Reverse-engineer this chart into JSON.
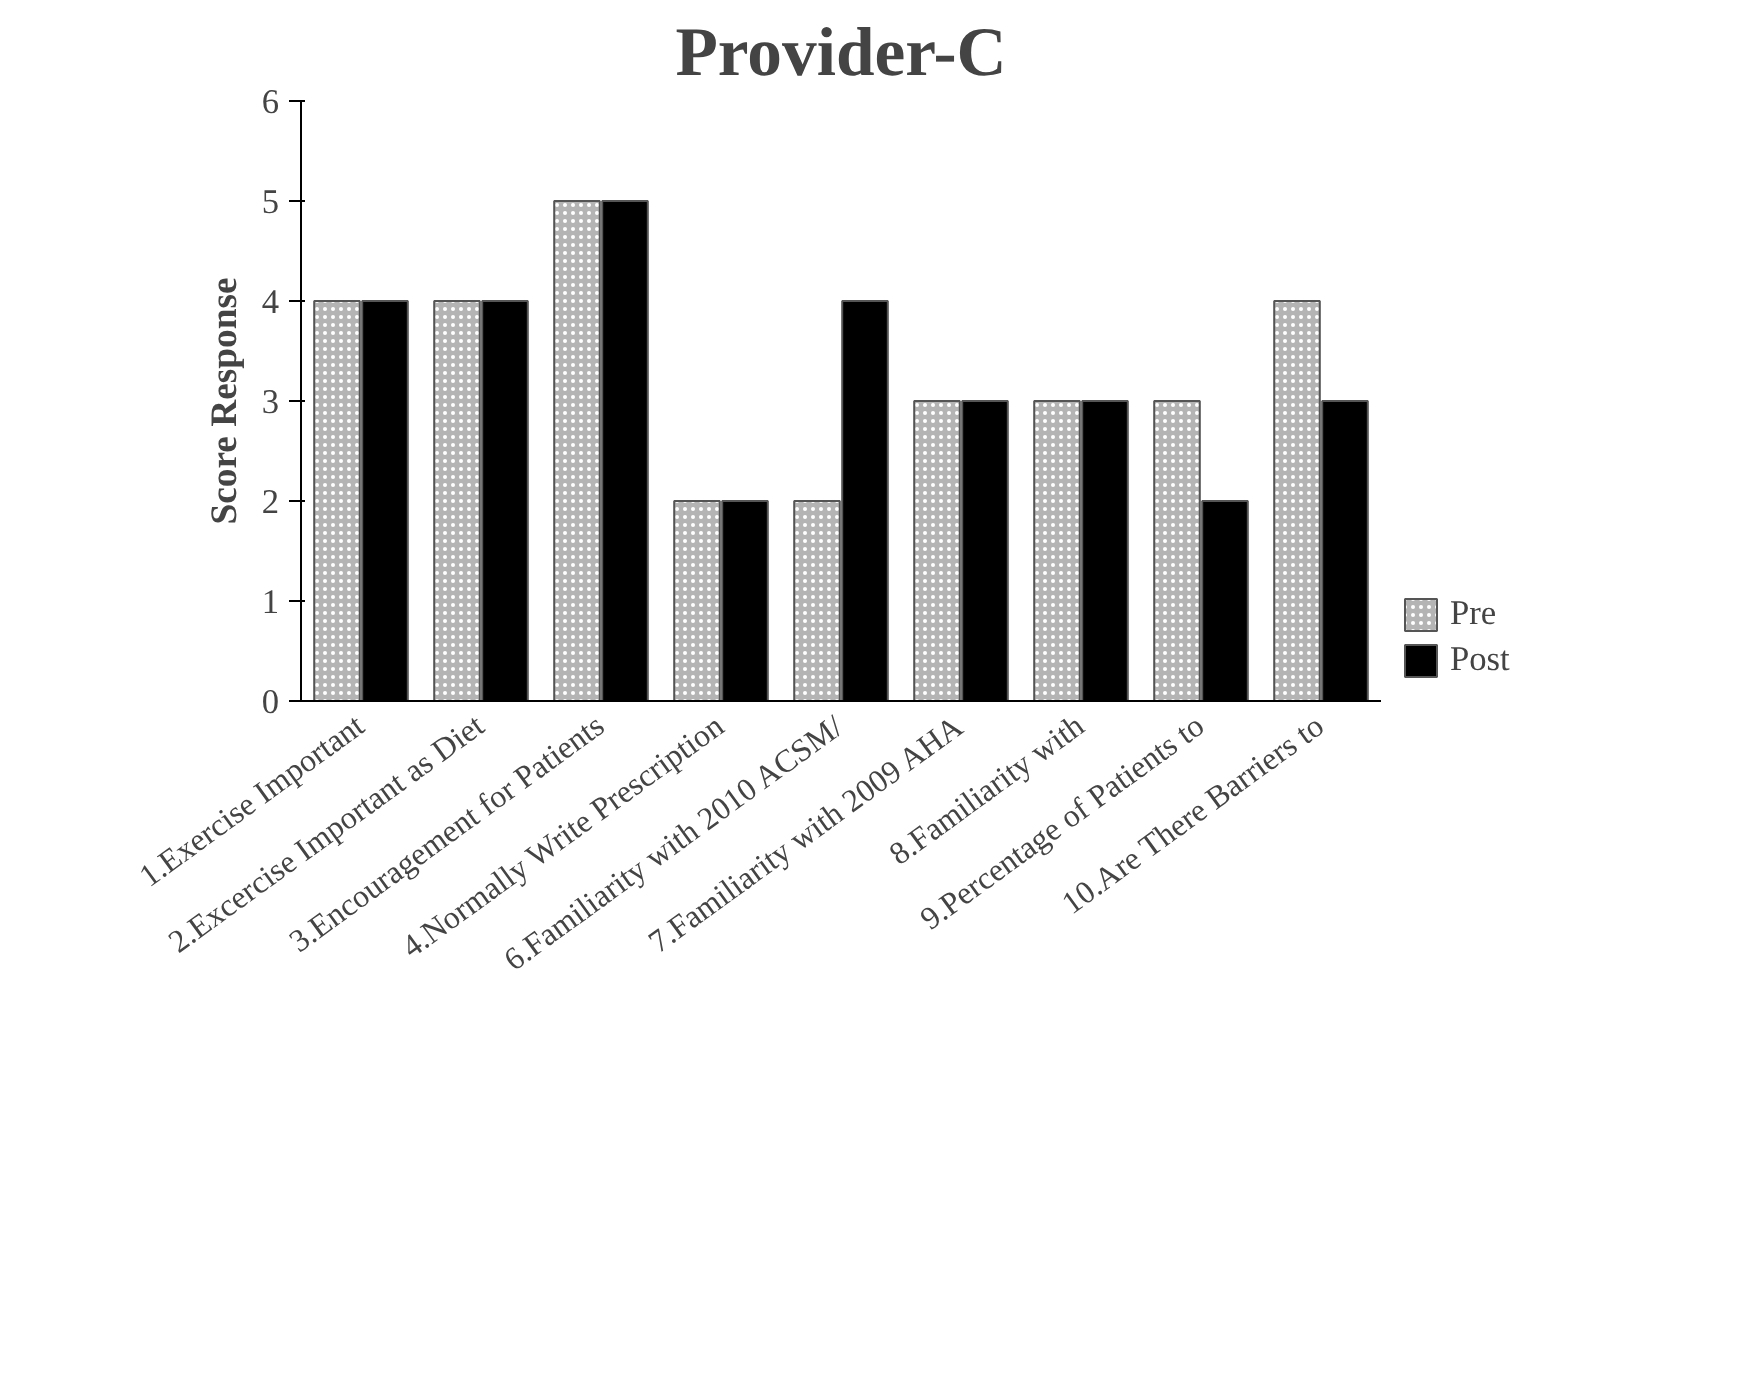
{
  "chart_data": {
    "type": "bar",
    "title": "Provider-C",
    "ylabel": "Score Response",
    "categories": [
      "1.Exercise Important",
      "2.Excercise Important as Diet",
      "3.Encouragement for Patients",
      "4.Normally Write Prescription",
      "6.Familiarity with 2010 ACSM/",
      "7.Familiarity with 2009 AHA",
      "8.Familiarity with",
      "9.Percentage of Patients to",
      "10.Are There Barriers to"
    ],
    "series": [
      {
        "name": "Pre",
        "color": "#b4b4b4",
        "values": [
          4,
          4,
          5,
          2,
          2,
          3,
          3,
          3,
          4
        ]
      },
      {
        "name": "Post",
        "color": "#000000",
        "values": [
          4,
          4,
          5,
          2,
          4,
          3,
          3,
          2,
          3
        ]
      }
    ],
    "ylim": [
      0,
      6
    ],
    "yticks": [
      0,
      1,
      2,
      3,
      4,
      5,
      6
    ],
    "grid": false,
    "legend": "right"
  }
}
